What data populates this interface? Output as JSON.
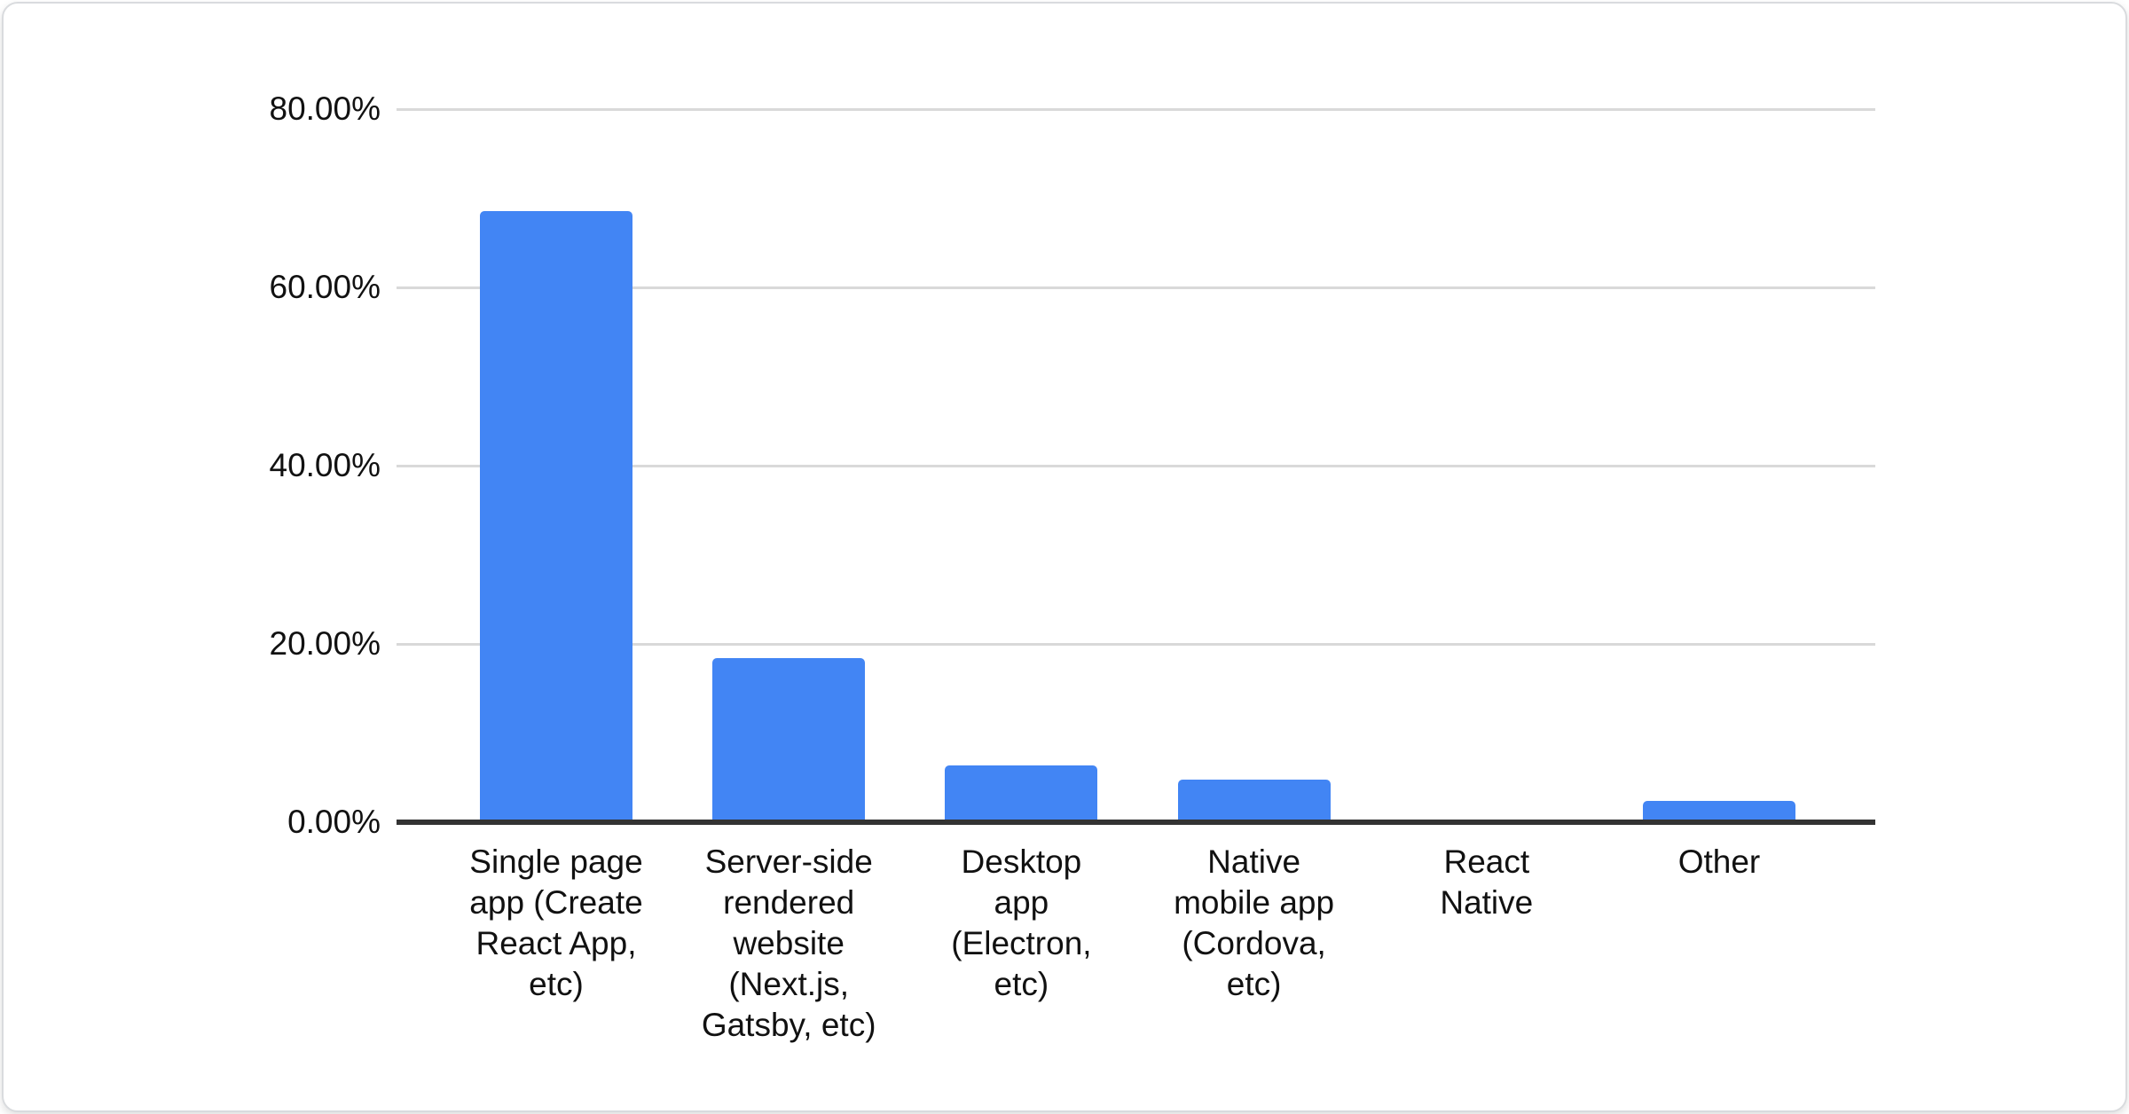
{
  "chart_data": {
    "type": "bar",
    "title": "",
    "categories": [
      "Single page app (Create React App, etc)",
      "Server-side rendered website (Next.js, Gatsby, etc)",
      "Desktop app (Electron, etc)",
      "Native mobile app (Cordova, etc)",
      "React Native",
      "Other"
    ],
    "category_display_lines": [
      "Single page\napp (Create\nReact App,\netc)",
      "Server-side\nrendered\nwebsite\n(Next.js,\nGatsby, etc)",
      "Desktop\napp\n(Electron,\netc)",
      "Native\nmobile app\n(Cordova,\netc)",
      "React\nNative",
      "Other"
    ],
    "values": [
      68.6,
      18.4,
      6.4,
      4.8,
      0,
      2.4
    ],
    "unit": "%",
    "y_axis": {
      "min": 0,
      "max": 80,
      "tick_values": [
        0,
        20,
        40,
        60,
        80
      ],
      "ticks": [
        "0.00%",
        "20.00%",
        "40.00%",
        "60.00%",
        "80.00%"
      ]
    },
    "grid": true,
    "legend": false,
    "colors": {
      "bar": "#4285f4",
      "gridline": "#d9d9d9",
      "axis_line": "#333333",
      "text": "#111111"
    }
  }
}
